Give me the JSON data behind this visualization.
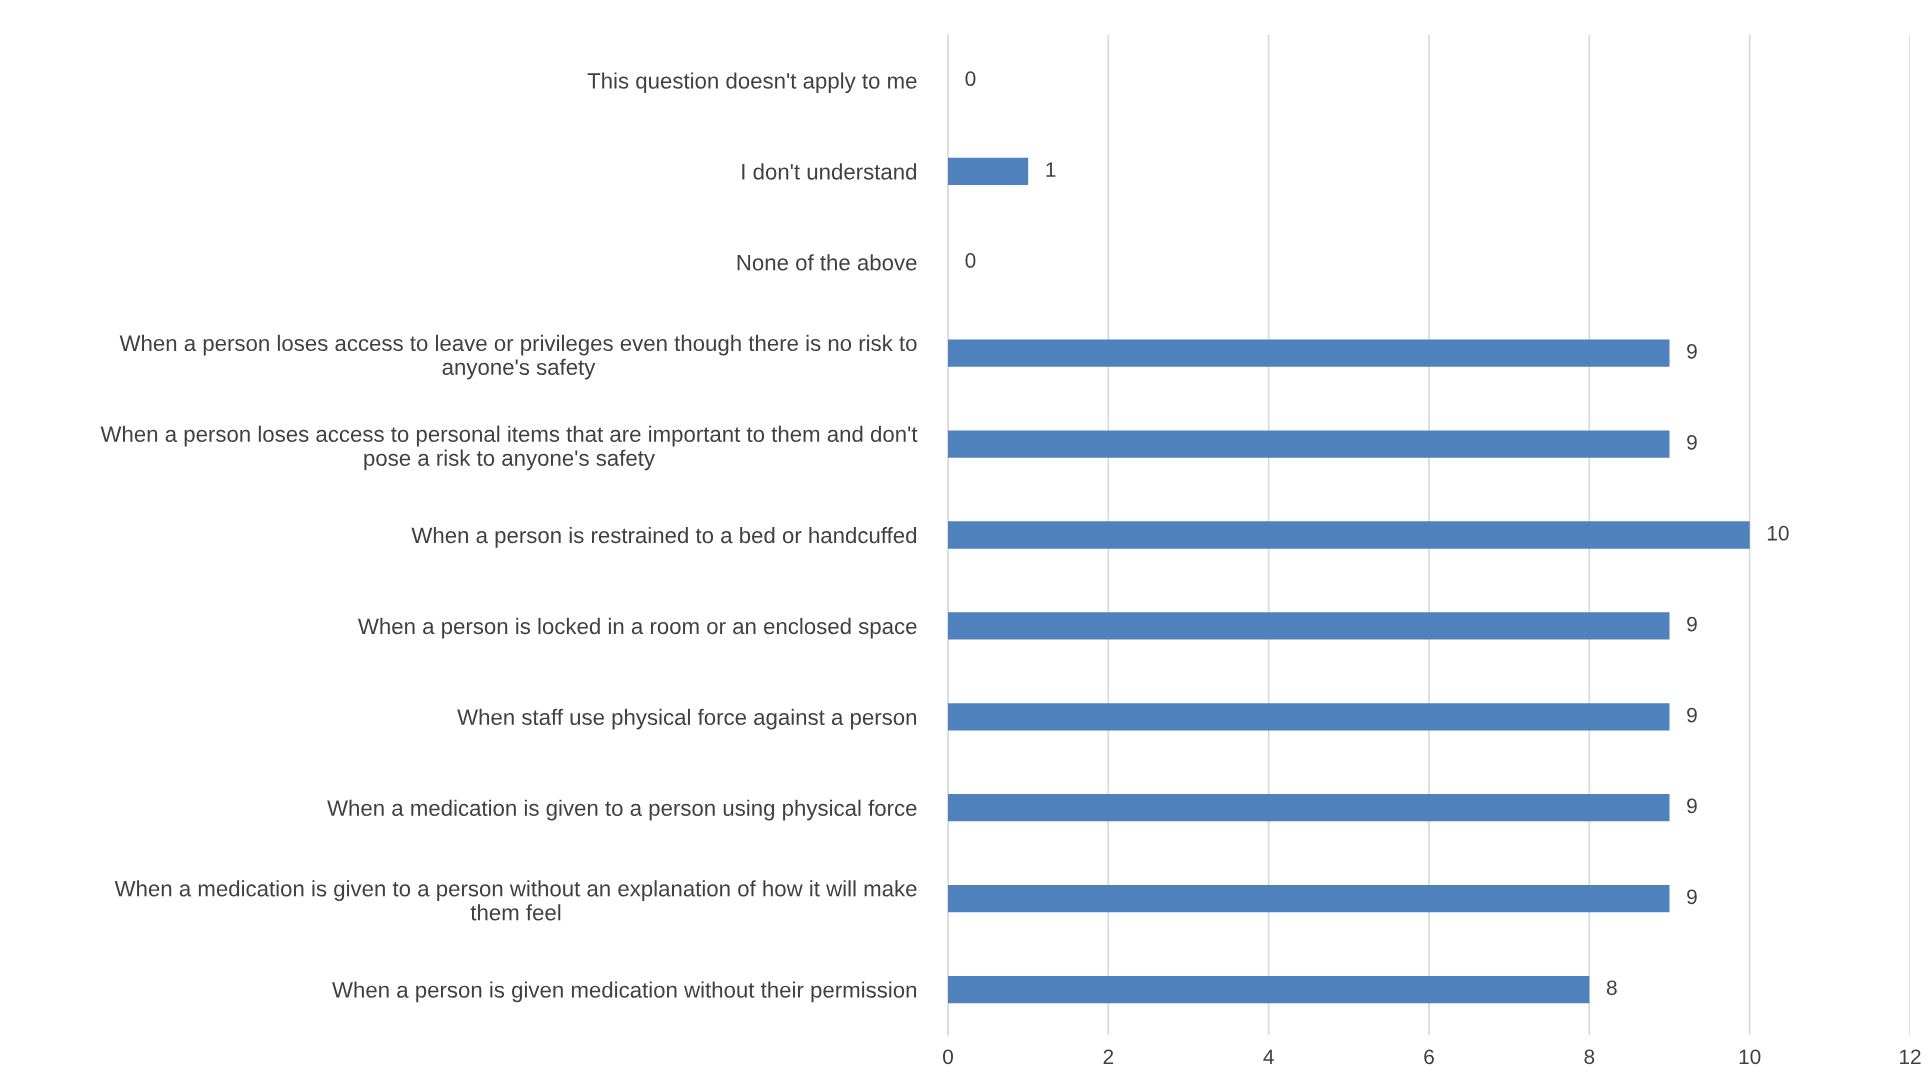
{
  "chart_data": {
    "type": "bar",
    "orientation": "horizontal",
    "categories": [
      "This question doesn't apply to me",
      "I don't understand",
      "None of the above",
      "When a person loses access to leave or privileges even though there is no risk to\nanyone's safety",
      "When a person loses access to personal items that are important to them and don't\npose a risk to anyone's safety",
      "When a person is restrained to a bed or handcuffed",
      "When a person is locked in a room or an enclosed space",
      "When staff use physical force against a person",
      "When a medication is given to a person using physical force",
      "When a medication is given to a person without an explanation of how it will make\nthem feel",
      "When a person is given medication without their permission"
    ],
    "values": [
      0,
      1,
      0,
      9,
      9,
      10,
      9,
      9,
      9,
      9,
      8
    ],
    "color": "#4f81bd",
    "xlim": [
      0,
      12
    ],
    "xticks": [
      0,
      2,
      4,
      6,
      8,
      10,
      12
    ],
    "grid": "x",
    "data_labels": true,
    "legend": false
  }
}
